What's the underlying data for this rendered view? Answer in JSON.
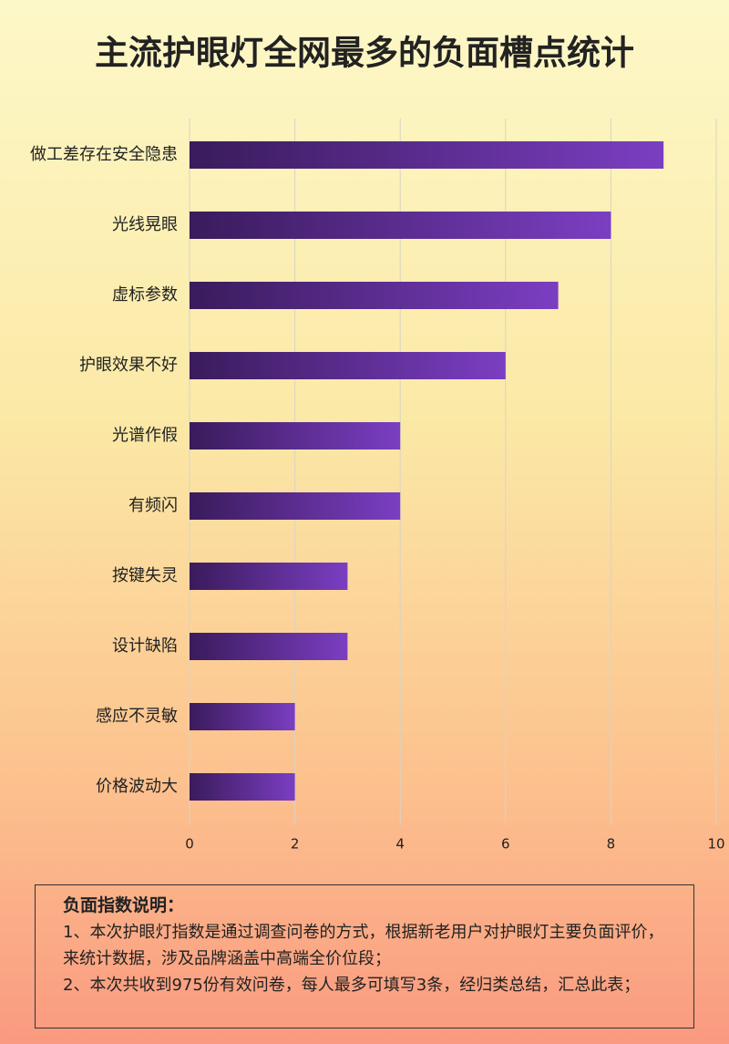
{
  "chart_data": {
    "type": "hbar",
    "title": "主流护眼灯全网最多的负面槽点统计",
    "categories": [
      "做工差存在安全隐患",
      "光线晃眼",
      "虚标参数",
      "护眼效果不好",
      "光谱作假",
      "有频闪",
      "按键失灵",
      "设计缺陷",
      "感应不灵敏",
      "价格波动大"
    ],
    "values": [
      9,
      8,
      7,
      6,
      4,
      4,
      3,
      3,
      2,
      2
    ],
    "bar_gradient": [
      "#3a1b5c",
      "#7b3ec2"
    ],
    "xlim": [
      0,
      10
    ],
    "xticks": [
      0,
      2,
      4,
      6,
      8,
      10
    ],
    "grid": true
  },
  "note": {
    "title": "负面指数说明：",
    "paragraphs": [
      "1、本次护眼灯指数是通过调查问卷的方式，根据新老用户对护眼灯主要负面评价，来统计数据，涉及品牌涵盖中高端全价位段；",
      "2、本次共收到975份有效问卷，每人最多可填写3条，经归类总结，汇总此表；"
    ]
  }
}
